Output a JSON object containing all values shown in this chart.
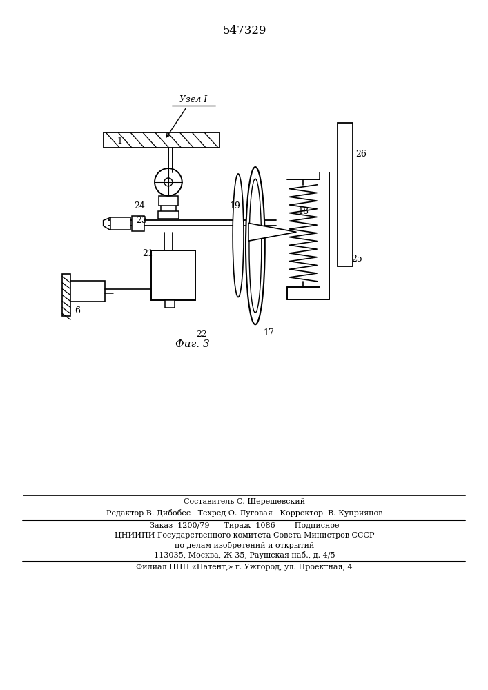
{
  "patent_number": "547329",
  "fig_label": "Фиг. 3",
  "node_label": "Узел I",
  "background_color": "#ffffff",
  "line_color": "#000000",
  "footer_line1": "Составитель С. Шерешевский",
  "footer_line2": "Редактор В. Дибобес   Техред О. Луговая   Корректор  В. Куприянов",
  "footer_line3": "Заказ  1200/79      Тираж  1086        Подписное",
  "footer_line4": "ЦНИИПИ Государственного комитета Совета Министров СССР",
  "footer_line5": "по делам изобретений и открытий",
  "footer_line6": "113035, Москва, Ж-35, Раушская наб., д. 4/5",
  "footer_line7": "Филиал ППП «Патент,» г. Ужгород, ул. Проектная, 4"
}
